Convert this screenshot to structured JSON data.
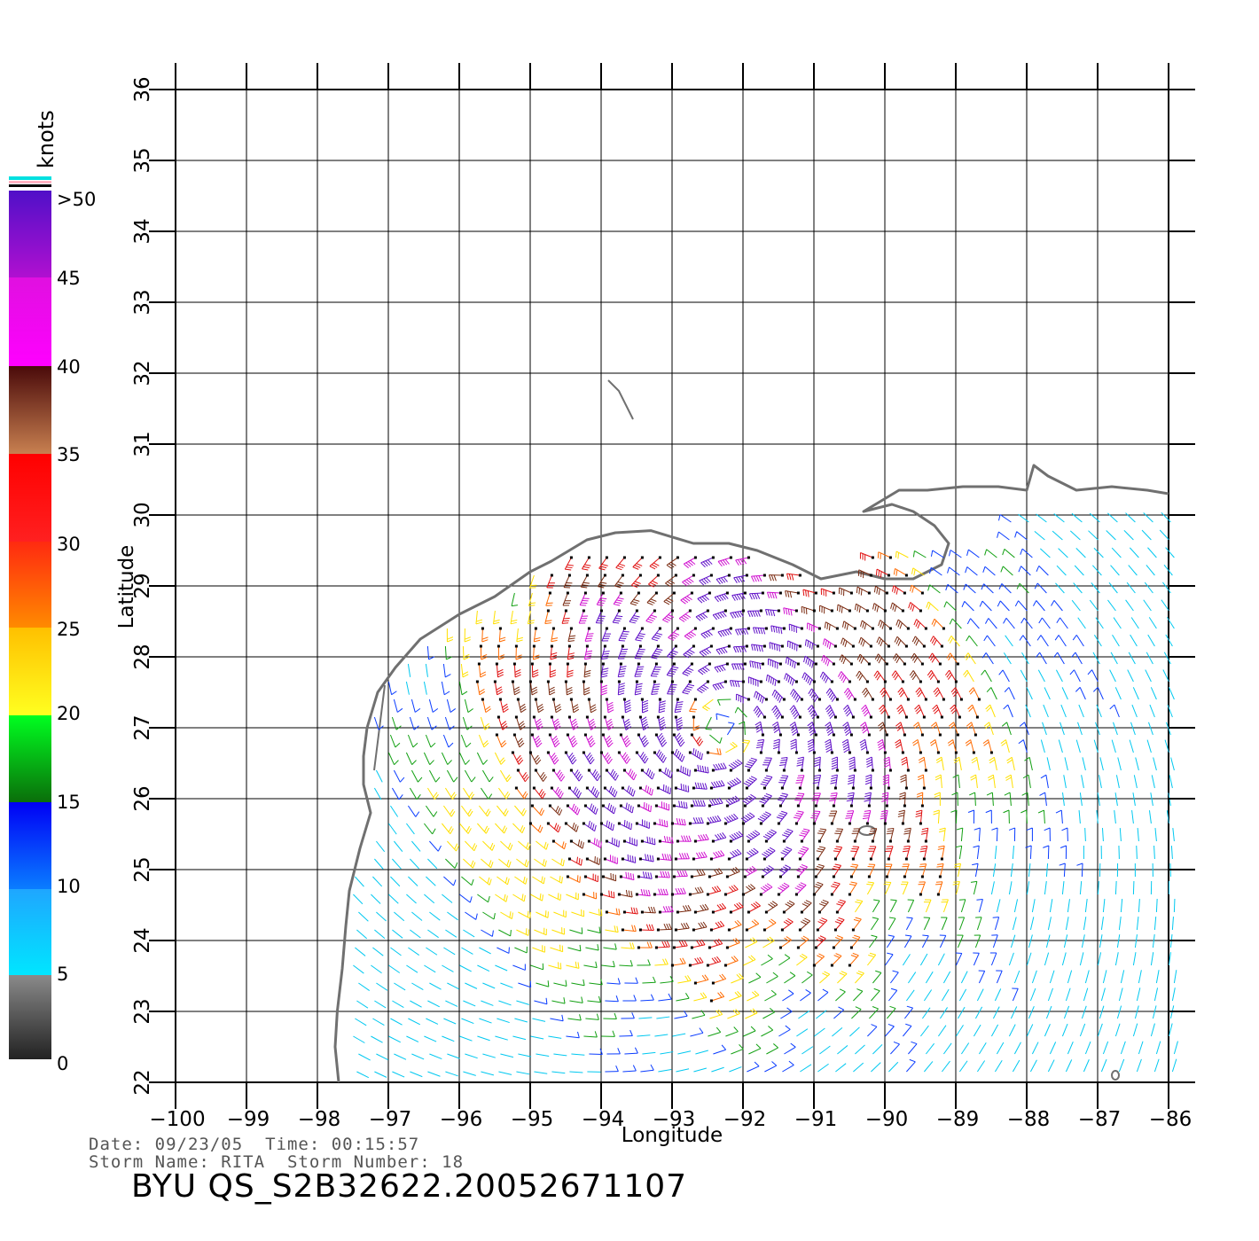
{
  "map": {
    "xlabel": "Longitude",
    "ylabel": "Latitude",
    "lon_range": [
      -100,
      -86
    ],
    "lat_range": [
      22,
      36
    ],
    "lon_ticks": [
      -100,
      -99,
      -98,
      -97,
      -96,
      -95,
      -94,
      -93,
      -92,
      -91,
      -90,
      -89,
      -88,
      -87,
      -86
    ],
    "lon_tick_labels": [
      "−100",
      "−99",
      "−98",
      "−97",
      "−96",
      "−95",
      "−94",
      "−93",
      "−92",
      "−91",
      "−90",
      "−89",
      "−88",
      "−87",
      "−86"
    ],
    "lat_ticks": [
      22,
      23,
      24,
      25,
      26,
      27,
      28,
      29,
      30,
      31,
      32,
      33,
      34,
      35,
      36
    ],
    "lat_tick_labels": [
      "22",
      "23",
      "24",
      "25",
      "26",
      "27",
      "28",
      "29",
      "30",
      "31",
      "32",
      "33",
      "34",
      "35",
      "36"
    ],
    "grid": true,
    "storm_center": {
      "lon": -92.3,
      "lat": 27.0
    },
    "coastline_color": "#707070"
  },
  "colorbar": {
    "title": "knots",
    "labels": [
      ">50",
      "45",
      "40",
      "35",
      "30",
      "25",
      "20",
      "15",
      "10",
      "5",
      "0"
    ],
    "placement": "left"
  },
  "info": {
    "date_label": "Date:",
    "date": "09/23/05",
    "time_label": "Time:",
    "time": "00:15:57",
    "storm_name_label": "Storm Name:",
    "storm_name": "RITA",
    "storm_number_label": "Storm Number:",
    "storm_number": "18"
  },
  "product_id": "BYU QS_S2B32622.20052671107"
}
